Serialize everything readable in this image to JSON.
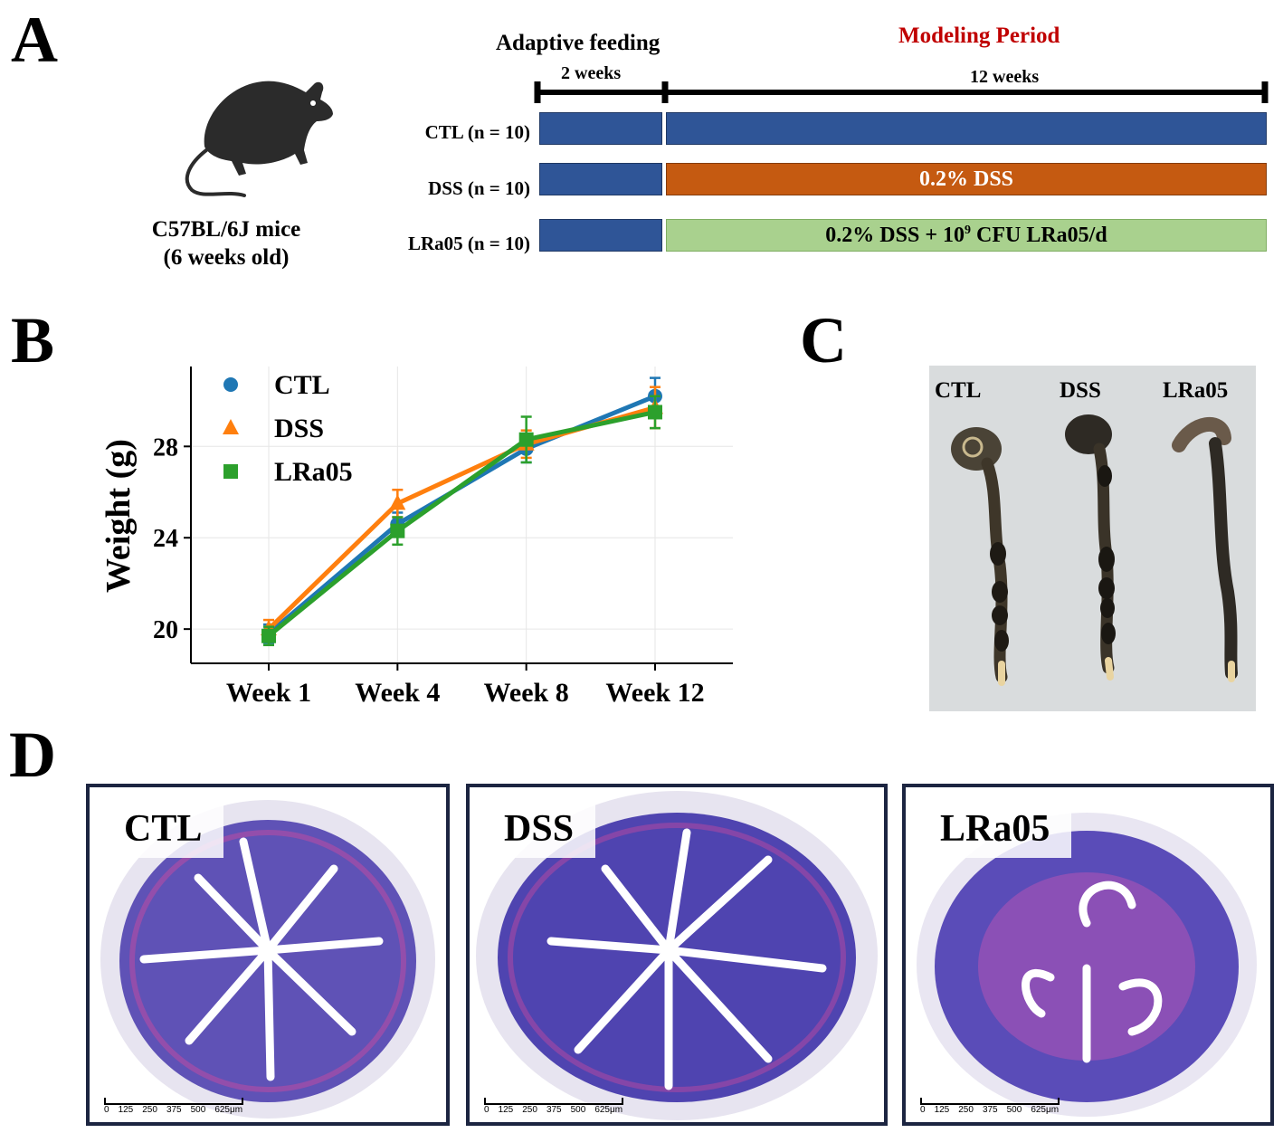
{
  "panels": {
    "a": "A",
    "b": "B",
    "c": "C",
    "d": "D"
  },
  "panel_a": {
    "mouse_caption_line1": "C57BL/6J mice",
    "mouse_caption_line2": "(6 weeks old)",
    "adaptive_title": "Adaptive feeding",
    "adaptive_duration": "2 weeks",
    "modeling_title": "Modeling Period",
    "modeling_duration": "12 weeks",
    "groups": [
      {
        "label": "CTL (n = 10)",
        "treatment": ""
      },
      {
        "label": "DSS (n = 10)",
        "treatment": "0.2% DSS"
      },
      {
        "label": "LRa05 (n = 10)",
        "treatment_prefix": "0.2% DSS + 10",
        "treatment_sup": "9",
        "treatment_suffix": " CFU LRa05/d"
      }
    ],
    "colors": {
      "adaptive": "#2f5597",
      "ctl": "#2f5597",
      "dss": "#c55a11",
      "lra05": "#a9d18e",
      "modeling_title": "#c00000"
    }
  },
  "chart_data": {
    "type": "line",
    "title": "",
    "xlabel": "",
    "ylabel": "Weight (g)",
    "categories": [
      "Week 1",
      "Week 4",
      "Week 8",
      "Week 12"
    ],
    "ylim": [
      18.5,
      31.5
    ],
    "yticks": [
      20,
      24,
      28
    ],
    "grid": true,
    "legend_position": "top-left",
    "series": [
      {
        "name": "CTL",
        "marker": "circle",
        "color": "#1f77b4",
        "values": [
          19.8,
          24.6,
          27.9,
          30.2
        ],
        "errors": [
          0.4,
          0.5,
          0.6,
          0.8
        ]
      },
      {
        "name": "DSS",
        "marker": "triangle",
        "color": "#ff7f0e",
        "values": [
          20.0,
          25.5,
          28.1,
          29.7
        ],
        "errors": [
          0.4,
          0.6,
          0.6,
          0.9
        ]
      },
      {
        "name": "LRa05",
        "marker": "square",
        "color": "#2ca02c",
        "values": [
          19.7,
          24.3,
          28.3,
          29.5
        ],
        "errors": [
          0.4,
          0.6,
          1.0,
          0.7
        ]
      }
    ]
  },
  "panel_c": {
    "labels": [
      "CTL",
      "DSS",
      "LRa05"
    ]
  },
  "panel_d": {
    "labels": [
      "CTL",
      "DSS",
      "LRa05"
    ],
    "scale_ticks": [
      "0",
      "125",
      "250",
      "375",
      "500",
      "625μm"
    ]
  }
}
